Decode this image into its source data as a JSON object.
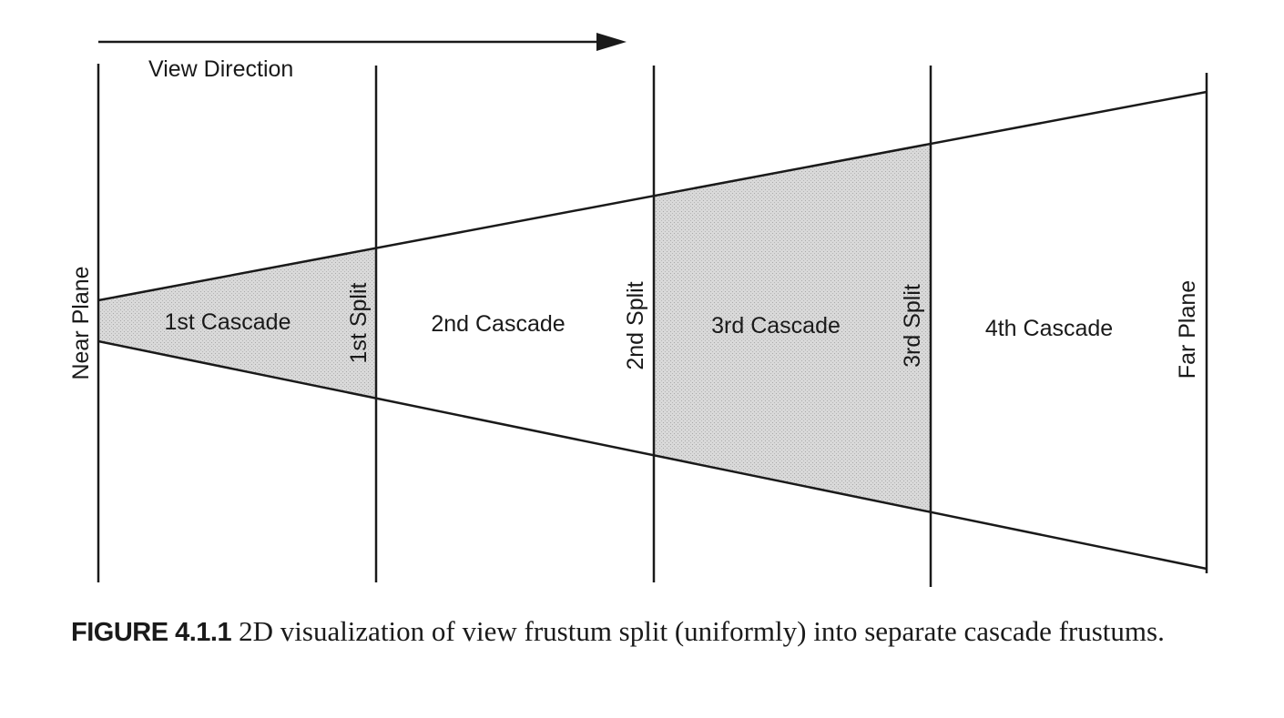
{
  "diagram": {
    "view_direction_label": "View Direction",
    "near_plane_label": "Near Plane",
    "far_plane_label": "Far Plane",
    "splits": [
      "1st Split",
      "2nd Split",
      "3rd Split"
    ],
    "cascades": [
      "1st Cascade",
      "2nd Cascade",
      "3rd Cascade",
      "4th Cascade"
    ],
    "colors": {
      "line": "#1a1a1a",
      "shaded_cascade": "#d6d6d6",
      "background": "#ffffff"
    },
    "shaded_cascades": [
      1,
      3
    ]
  },
  "caption": {
    "label": "FIGURE 4.1.1",
    "text": "2D visualization of view frustum split (uniformly) into separate cascade frustums."
  }
}
